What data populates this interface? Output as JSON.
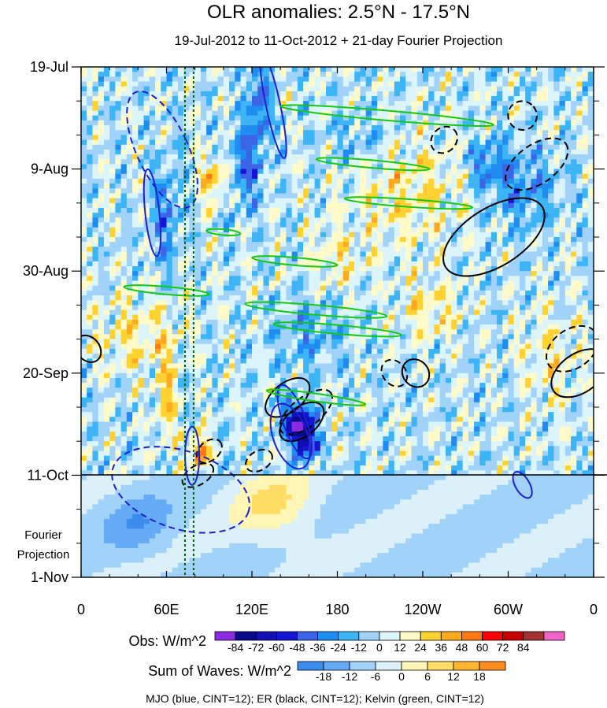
{
  "chart_data": {
    "type": "heatmap",
    "title": "OLR anomalies: 2.5°N - 17.5°N",
    "subtitle": "19-Jul-2012 to 11-Oct-2012 + 21-day Fourier Projection",
    "x_tick_labels": [
      "0",
      "60E",
      "120E",
      "180",
      "120W",
      "60W",
      "0"
    ],
    "x_ticks_degE": [
      0,
      60,
      120,
      180,
      240,
      300,
      360
    ],
    "y_tick_labels": [
      "19-Jul",
      "9-Aug",
      "30-Aug",
      "20-Sep",
      "11-Oct",
      "1-Nov"
    ],
    "y_ticks_dates": [
      "2012-07-19",
      "2012-08-09",
      "2012-08-30",
      "2012-09-20",
      "2012-10-11",
      "2012-11-01"
    ],
    "observation_end_date": "2012-10-11",
    "projection_label_line1": "Fourier",
    "projection_label_line2": "Projection",
    "obs_colorbar": {
      "label": "Obs: W/m^2",
      "levels": [
        -84,
        -72,
        -60,
        -48,
        -36,
        -24,
        -12,
        0,
        12,
        24,
        36,
        48,
        60,
        72,
        84
      ],
      "level_labels": [
        "-84",
        "-72",
        "-60",
        "-48",
        "-36",
        "-24",
        "-12",
        "0",
        "12",
        "24",
        "36",
        "48",
        "60",
        "72",
        "84"
      ],
      "colors": [
        "#8a2be2",
        "#0a0a8c",
        "#1010b4",
        "#1414d2",
        "#3c64e6",
        "#1e8cf0",
        "#3cb4f5",
        "#a0d2fa",
        "#dcf5fa",
        "#fffac8",
        "#ffd232",
        "#ffaa1e",
        "#ff7814",
        "#ff0000",
        "#c80000",
        "#a03232",
        "#f064c8"
      ]
    },
    "waves_colorbar": {
      "label": "Sum of Waves: W/m^2",
      "levels": [
        -18,
        -12,
        -6,
        0,
        6,
        12,
        18
      ],
      "level_labels": [
        "-18",
        "-12",
        "-6",
        "0",
        "6",
        "12",
        "18"
      ],
      "colors": [
        "#3c8cf0",
        "#64aaf5",
        "#a0d2fa",
        "#dcf0fa",
        "#fff5b4",
        "#ffdc64",
        "#ffb432",
        "#ff8c1e"
      ]
    },
    "footer": "MJO (blue, CINT=12); ER (black, CINT=12); Kelvin (green, CINT=12)",
    "contour_colors": {
      "mjo": "#1e1ed2",
      "er": "#000000",
      "kelvin": "#14c814",
      "reference_line": "#006400"
    },
    "reference_longitudes_degE": [
      73,
      79
    ]
  }
}
